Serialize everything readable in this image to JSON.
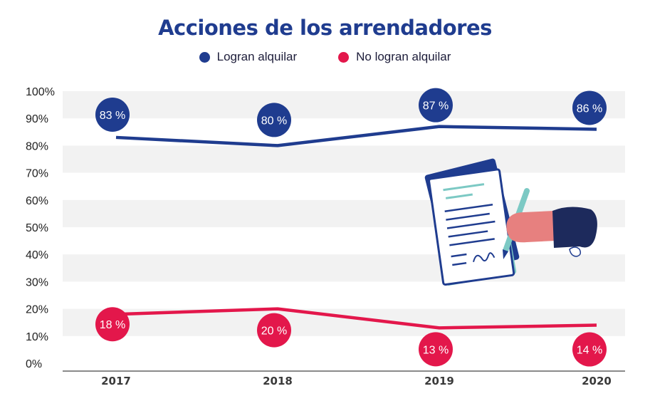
{
  "colors": {
    "series_a": "#1f3c8f",
    "series_b": "#e3174b",
    "title": "#1f3c8f",
    "band": "#f2f2f2",
    "axis": "#8a8a8a"
  },
  "icons": [
    "document-signing-illustration"
  ],
  "chart_data": {
    "type": "line",
    "title": "Acciones de los arrendadores",
    "legend_position": "top-center",
    "grid": "alternating-bands",
    "categories": [
      "2017",
      "2018",
      "2019",
      "2020"
    ],
    "yticks": [
      "100%",
      "90%",
      "80%",
      "70%",
      "60%",
      "50%",
      "40%",
      "30%",
      "20%",
      "10%",
      "0%"
    ],
    "ylim": [
      0,
      100
    ],
    "series": [
      {
        "name": "Logran alquilar",
        "values": [
          83,
          80,
          87,
          86
        ],
        "labels": [
          "83 %",
          "80 %",
          "87 %",
          "86 %"
        ]
      },
      {
        "name": "No logran alquilar",
        "values": [
          18,
          20,
          13,
          14
        ],
        "labels": [
          "18 %",
          "20 %",
          "13 %",
          "14 %"
        ]
      }
    ]
  }
}
